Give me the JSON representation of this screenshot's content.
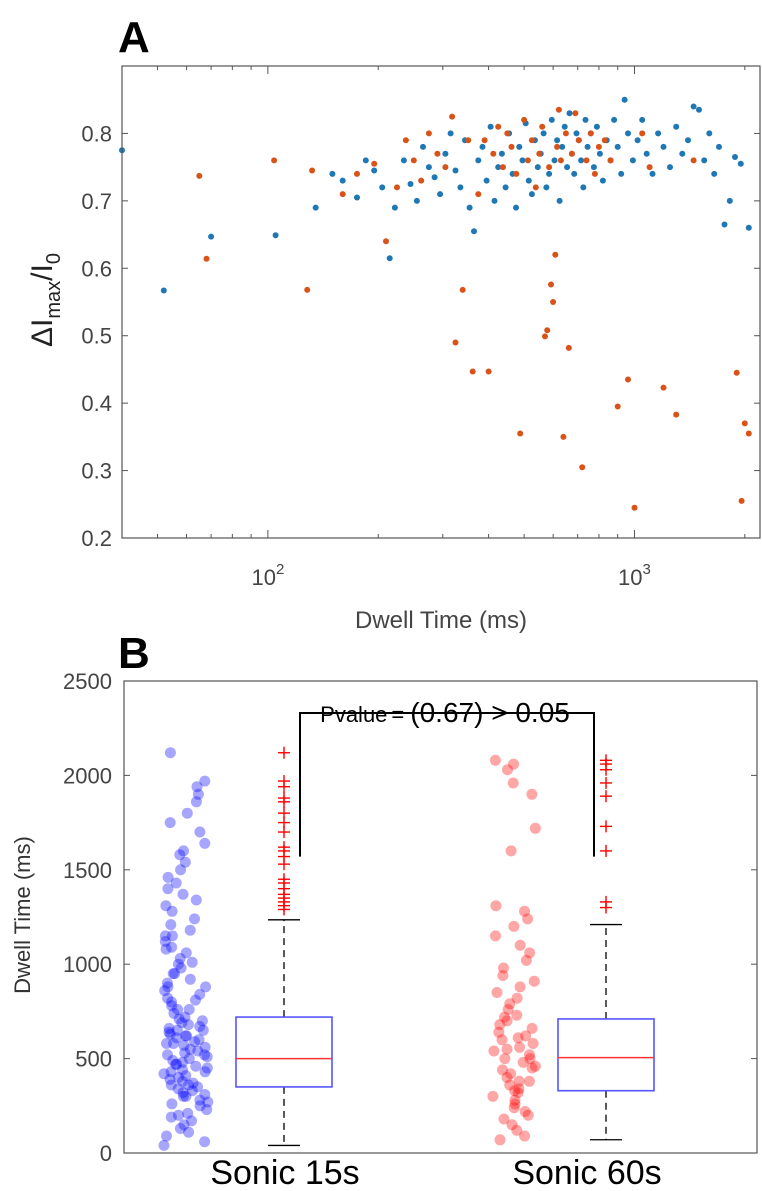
{
  "chart_data": [
    {
      "panel_label": "A",
      "type": "scatter",
      "x_scale": "log",
      "xlabel": "Dwell Time (ms)",
      "ylabel": {
        "base": "ΔI",
        "sub": "max",
        "mid": "/I",
        "sub2": "0"
      },
      "xlim": [
        40,
        2200
      ],
      "ylim": [
        0.2,
        0.9
      ],
      "x_ticks": [
        {
          "value": 100,
          "base": "10",
          "exp": "2"
        },
        {
          "value": 1000,
          "base": "10",
          "exp": "3"
        }
      ],
      "y_ticks": [
        "0.2",
        "0.3",
        "0.4",
        "0.5",
        "0.6",
        "0.7",
        "0.8"
      ],
      "grid": false,
      "series": [
        {
          "color": "#1f77b4",
          "points": [
            [
              40,
              0.775
            ],
            [
              52,
              0.567
            ],
            [
              70,
              0.647
            ],
            [
              105,
              0.649
            ],
            [
              135,
              0.69
            ],
            [
              150,
              0.74
            ],
            [
              160,
              0.73
            ],
            [
              175,
              0.705
            ],
            [
              185,
              0.76
            ],
            [
              195,
              0.745
            ],
            [
              205,
              0.72
            ],
            [
              215,
              0.615
            ],
            [
              222,
              0.69
            ],
            [
              235,
              0.76
            ],
            [
              245,
              0.725
            ],
            [
              255,
              0.7
            ],
            [
              265,
              0.78
            ],
            [
              275,
              0.75
            ],
            [
              285,
              0.735
            ],
            [
              295,
              0.71
            ],
            [
              305,
              0.77
            ],
            [
              315,
              0.8
            ],
            [
              325,
              0.745
            ],
            [
              335,
              0.72
            ],
            [
              345,
              0.79
            ],
            [
              355,
              0.69
            ],
            [
              365,
              0.655
            ],
            [
              375,
              0.76
            ],
            [
              385,
              0.78
            ],
            [
              395,
              0.73
            ],
            [
              405,
              0.81
            ],
            [
              415,
              0.7
            ],
            [
              425,
              0.75
            ],
            [
              435,
              0.77
            ],
            [
              445,
              0.72
            ],
            [
              455,
              0.8
            ],
            [
              465,
              0.74
            ],
            [
              475,
              0.69
            ],
            [
              485,
              0.78
            ],
            [
              495,
              0.76
            ],
            [
              505,
              0.815
            ],
            [
              515,
              0.73
            ],
            [
              525,
              0.71
            ],
            [
              535,
              0.79
            ],
            [
              545,
              0.75
            ],
            [
              555,
              0.77
            ],
            [
              565,
              0.8
            ],
            [
              575,
              0.72
            ],
            [
              585,
              0.74
            ],
            [
              595,
              0.82
            ],
            [
              605,
              0.76
            ],
            [
              615,
              0.79
            ],
            [
              625,
              0.7
            ],
            [
              635,
              0.78
            ],
            [
              645,
              0.81
            ],
            [
              655,
              0.75
            ],
            [
              665,
              0.83
            ],
            [
              675,
              0.77
            ],
            [
              685,
              0.74
            ],
            [
              695,
              0.8
            ],
            [
              705,
              0.79
            ],
            [
              715,
              0.76
            ],
            [
              725,
              0.72
            ],
            [
              735,
              0.82
            ],
            [
              745,
              0.78
            ],
            [
              760,
              0.8
            ],
            [
              775,
              0.75
            ],
            [
              790,
              0.81
            ],
            [
              805,
              0.77
            ],
            [
              820,
              0.73
            ],
            [
              840,
              0.79
            ],
            [
              860,
              0.76
            ],
            [
              880,
              0.82
            ],
            [
              900,
              0.78
            ],
            [
              920,
              0.74
            ],
            [
              940,
              0.85
            ],
            [
              960,
              0.8
            ],
            [
              990,
              0.76
            ],
            [
              1020,
              0.79
            ],
            [
              1050,
              0.82
            ],
            [
              1080,
              0.77
            ],
            [
              1120,
              0.74
            ],
            [
              1160,
              0.8
            ],
            [
              1200,
              0.78
            ],
            [
              1250,
              0.75
            ],
            [
              1300,
              0.81
            ],
            [
              1350,
              0.77
            ],
            [
              1400,
              0.79
            ],
            [
              1450,
              0.84
            ],
            [
              1500,
              0.835
            ],
            [
              1550,
              0.76
            ],
            [
              1600,
              0.8
            ],
            [
              1650,
              0.74
            ],
            [
              1700,
              0.78
            ],
            [
              1760,
              0.665
            ],
            [
              1820,
              0.7
            ],
            [
              1880,
              0.765
            ],
            [
              1950,
              0.755
            ],
            [
              2050,
              0.66
            ]
          ]
        },
        {
          "color": "#d95319",
          "points": [
            [
              65,
              0.737
            ],
            [
              68,
              0.614
            ],
            [
              104,
              0.76
            ],
            [
              128,
              0.568
            ],
            [
              132,
              0.745
            ],
            [
              160,
              0.71
            ],
            [
              175,
              0.74
            ],
            [
              195,
              0.755
            ],
            [
              210,
              0.64
            ],
            [
              225,
              0.72
            ],
            [
              238,
              0.79
            ],
            [
              250,
              0.76
            ],
            [
              262,
              0.73
            ],
            [
              275,
              0.8
            ],
            [
              290,
              0.77
            ],
            [
              305,
              0.75
            ],
            [
              318,
              0.825
            ],
            [
              325,
              0.49
            ],
            [
              340,
              0.568
            ],
            [
              352,
              0.79
            ],
            [
              362,
              0.447
            ],
            [
              375,
              0.71
            ],
            [
              390,
              0.79
            ],
            [
              400,
              0.447
            ],
            [
              412,
              0.77
            ],
            [
              425,
              0.81
            ],
            [
              438,
              0.75
            ],
            [
              450,
              0.8
            ],
            [
              462,
              0.78
            ],
            [
              476,
              0.74
            ],
            [
              488,
              0.355
            ],
            [
              500,
              0.82
            ],
            [
              512,
              0.76
            ],
            [
              525,
              0.79
            ],
            [
              538,
              0.72
            ],
            [
              550,
              0.77
            ],
            [
              560,
              0.81
            ],
            [
              570,
              0.499
            ],
            [
              578,
              0.508
            ],
            [
              585,
              0.75
            ],
            [
              592,
              0.576
            ],
            [
              600,
              0.55
            ],
            [
              608,
              0.62
            ],
            [
              615,
              0.78
            ],
            [
              622,
              0.835
            ],
            [
              630,
              0.76
            ],
            [
              640,
              0.35
            ],
            [
              650,
              0.8
            ],
            [
              662,
              0.482
            ],
            [
              675,
              0.77
            ],
            [
              690,
              0.83
            ],
            [
              705,
              0.79
            ],
            [
              720,
              0.305
            ],
            [
              740,
              0.76
            ],
            [
              760,
              0.8
            ],
            [
              780,
              0.74
            ],
            [
              800,
              0.78
            ],
            [
              830,
              0.79
            ],
            [
              860,
              0.76
            ],
            [
              900,
              0.395
            ],
            [
              960,
              0.435
            ],
            [
              1000,
              0.245
            ],
            [
              1050,
              0.8
            ],
            [
              1100,
              0.75
            ],
            [
              1200,
              0.423
            ],
            [
              1300,
              0.383
            ],
            [
              1450,
              0.76
            ],
            [
              1900,
              0.445
            ],
            [
              1960,
              0.255
            ],
            [
              2000,
              0.37
            ],
            [
              2050,
              0.355
            ]
          ]
        }
      ]
    },
    {
      "panel_label": "B",
      "type": "box",
      "ylabel": "Dwell Time (ms)",
      "ylim": [
        0,
        2500
      ],
      "y_ticks": [
        "0",
        "500",
        "1000",
        "1500",
        "2000",
        "2500"
      ],
      "categories": [
        "Sonic 15s",
        "Sonic 60s"
      ],
      "annotation": {
        "p_label": "Pvalue",
        "equals": "=",
        "rest": "(0.67) > 0.05"
      },
      "boxes": [
        {
          "category": "Sonic 15s",
          "color": "#0000ff",
          "q1": 350,
          "median": 500,
          "q3": 720,
          "whisker_low": 40,
          "whisker_high": 1235,
          "outliers": [
            1290,
            1310,
            1330,
            1350,
            1370,
            1400,
            1430,
            1450,
            1530,
            1570,
            1600,
            1620,
            1700,
            1750,
            1800,
            1860,
            1880,
            1940,
            1970,
            2120
          ]
        },
        {
          "category": "Sonic 60s",
          "color": "#ff0000",
          "q1": 330,
          "median": 505,
          "q3": 710,
          "whisker_low": 70,
          "whisker_high": 1210,
          "outliers": [
            1300,
            1330,
            1600,
            1730,
            1890,
            1960,
            2030,
            2060,
            2080
          ]
        }
      ],
      "jitter": [
        {
          "category": "Sonic 15s",
          "color": "#0000ff",
          "values": [
            40,
            60,
            90,
            110,
            130,
            150,
            170,
            190,
            200,
            210,
            230,
            250,
            260,
            270,
            280,
            300,
            310,
            320,
            330,
            340,
            350,
            360,
            370,
            380,
            390,
            400,
            410,
            420,
            430,
            440,
            450,
            460,
            470,
            480,
            490,
            500,
            510,
            520,
            530,
            540,
            550,
            560,
            570,
            580,
            590,
            600,
            610,
            620,
            630,
            640,
            650,
            660,
            670,
            680,
            690,
            700,
            720,
            740,
            760,
            780,
            800,
            820,
            840,
            860,
            880,
            900,
            920,
            950,
            980,
            1000,
            1030,
            1060,
            1090,
            1120,
            1150,
            1180,
            1210,
            1240,
            1280,
            1310,
            1340,
            1370,
            1400,
            1430,
            1460,
            1500,
            1540,
            1580,
            1600,
            1640,
            1700,
            1750,
            1800,
            1860,
            1900,
            1940,
            1970,
            2120,
            580,
            620,
            470,
            430,
            520,
            360,
            300,
            650,
            710,
            760,
            810,
            880,
            950,
            1010,
            1080,
            1150
          ]
        },
        {
          "category": "Sonic 60s",
          "color": "#ff0000",
          "values": [
            70,
            90,
            120,
            150,
            180,
            200,
            220,
            240,
            260,
            280,
            300,
            320,
            340,
            360,
            380,
            400,
            420,
            440,
            460,
            480,
            500,
            520,
            540,
            560,
            580,
            600,
            620,
            640,
            660,
            680,
            700,
            730,
            760,
            790,
            820,
            850,
            880,
            910,
            940,
            980,
            1020,
            1060,
            1100,
            1150,
            1200,
            1240,
            1280,
            1310,
            1600,
            1720,
            1900,
            1960,
            2030,
            2060,
            2080,
            450,
            500,
            550,
            380,
            610,
            330,
            720
          ]
        }
      ]
    }
  ]
}
